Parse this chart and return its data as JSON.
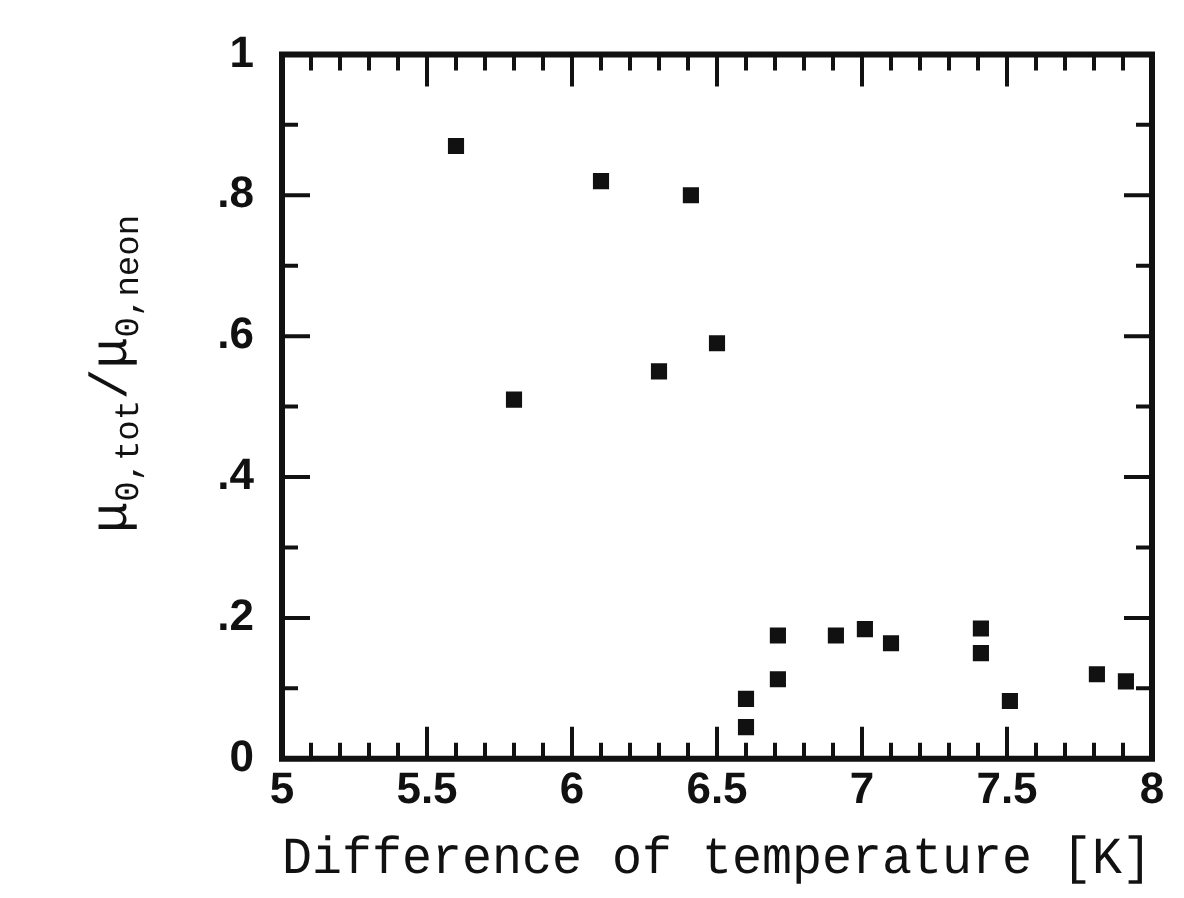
{
  "chart_data": {
    "type": "scatter",
    "xlabel": "Difference of temperature [K]",
    "ylabel": "μ$_{0,tot}$/μ$_{0,neon}$",
    "x": [
      5.6,
      5.8,
      6.1,
      6.3,
      6.41,
      6.5,
      6.6,
      6.6,
      6.71,
      6.71,
      6.91,
      7.01,
      7.1,
      7.41,
      7.41,
      7.51,
      7.81,
      7.91
    ],
    "series": [
      {
        "color": "#111111",
        "values": [
          0.87,
          0.51,
          0.82,
          0.55,
          0.8,
          0.59,
          0.085,
          0.045,
          0.175,
          0.113,
          0.175,
          0.184,
          0.164,
          0.185,
          0.15,
          0.082,
          0.12,
          0.11
        ]
      }
    ],
    "xlim": [
      5,
      8
    ],
    "ylim": [
      0,
      1
    ],
    "xticks": [
      5,
      {
        "value": 5.1,
        "label": null
      },
      {
        "value": 5.2,
        "label": null
      },
      {
        "value": 5.3,
        "label": null
      },
      {
        "value": 5.4,
        "label": null
      },
      5.5,
      {
        "value": 5.6,
        "label": null
      },
      {
        "value": 5.7,
        "label": null
      },
      {
        "value": 5.8,
        "label": null
      },
      {
        "value": 5.9,
        "label": null
      },
      6,
      {
        "value": 6.1,
        "label": null
      },
      {
        "value": 6.2,
        "label": null
      },
      {
        "value": 6.3,
        "label": null
      },
      {
        "value": 6.4,
        "label": null
      },
      6.5,
      {
        "value": 6.6,
        "label": null
      },
      {
        "value": 6.7,
        "label": null
      },
      {
        "value": 6.8,
        "label": null
      },
      {
        "value": 6.9,
        "label": null
      },
      7,
      {
        "value": 7.1,
        "label": null
      },
      {
        "value": 7.2,
        "label": null
      },
      {
        "value": 7.3,
        "label": null
      },
      {
        "value": 7.4,
        "label": null
      },
      7.5,
      {
        "value": 7.6,
        "label": null
      },
      {
        "value": 7.7,
        "label": null
      },
      {
        "value": 7.8,
        "label": null
      },
      {
        "value": 7.9,
        "label": null
      },
      8
    ],
    "yticks": [
      {
        "value": 0,
        "label": "0"
      },
      {
        "value": 0.1,
        "label": null
      },
      {
        "value": 0.2,
        "label": ".2"
      },
      {
        "value": 0.3,
        "label": null
      },
      {
        "value": 0.4,
        "label": ".4"
      },
      {
        "value": 0.5,
        "label": null
      },
      {
        "value": 0.6,
        "label": ".6"
      },
      {
        "value": 0.7,
        "label": null
      },
      {
        "value": 0.8,
        "label": ".8"
      },
      {
        "value": 0.9,
        "label": null
      },
      1
    ],
    "marker": "square",
    "grid": false,
    "legend": false
  }
}
